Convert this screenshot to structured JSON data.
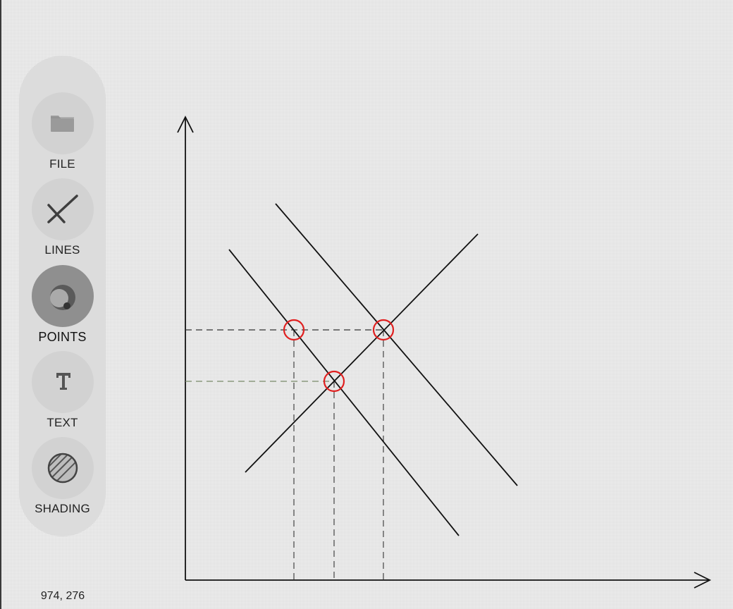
{
  "toolbar": {
    "tools": [
      {
        "label": "FILE",
        "icon": "folder-icon"
      },
      {
        "label": "LINES",
        "icon": "cross-lines-icon"
      },
      {
        "label": "POINTS",
        "icon": "points-icon",
        "active": true
      },
      {
        "label": "TEXT",
        "icon": "text-t-icon"
      },
      {
        "label": "SHADING",
        "icon": "shading-icon"
      }
    ]
  },
  "status": {
    "coordinates": "974, 276"
  },
  "colors": {
    "toolbar_bg": "#dcdcdc",
    "tool_bg": "#d2d2d2",
    "tool_active_bg": "#8f8f8f",
    "line": "#111111",
    "highlight": "#e02020",
    "guide_line": "#555555"
  }
}
